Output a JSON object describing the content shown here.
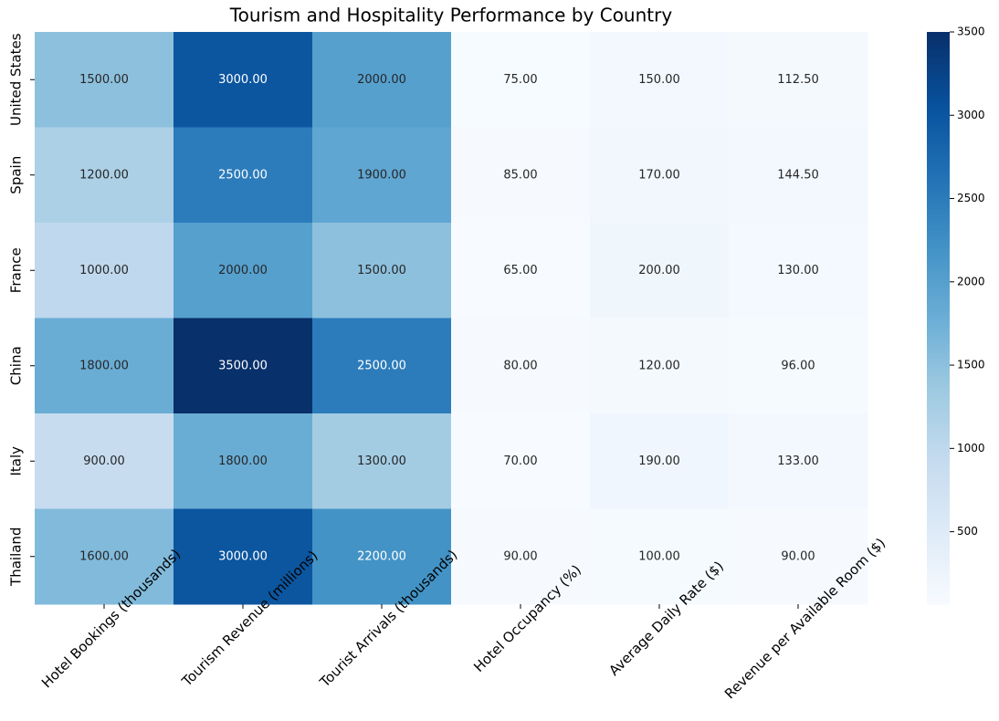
{
  "chart_data": {
    "type": "heatmap",
    "title": "Tourism and Hospitality Performance by Country",
    "x": [
      "Hotel Bookings (thousands)",
      "Tourism Revenue (millions)",
      "Tourist Arrivals (thousands)",
      "Hotel Occupancy (%)",
      "Average Daily Rate ($)",
      "Revenue per Available Room ($)"
    ],
    "y": [
      "United States",
      "Spain",
      "France",
      "China",
      "Italy",
      "Thailand"
    ],
    "values": [
      [
        1500,
        3000,
        2000,
        75,
        150,
        112.5
      ],
      [
        1200,
        2500,
        1900,
        85,
        170,
        144.5
      ],
      [
        1000,
        2000,
        1500,
        65,
        200,
        130
      ],
      [
        1800,
        3500,
        2500,
        80,
        120,
        96
      ],
      [
        900,
        1800,
        1300,
        70,
        190,
        133
      ],
      [
        1600,
        3000,
        2200,
        90,
        100,
        90
      ]
    ],
    "value_labels": [
      [
        "1500.00",
        "3000.00",
        "2000.00",
        "75.00",
        "150.00",
        "112.50"
      ],
      [
        "1200.00",
        "2500.00",
        "1900.00",
        "85.00",
        "170.00",
        "144.50"
      ],
      [
        "1000.00",
        "2000.00",
        "1500.00",
        "65.00",
        "200.00",
        "130.00"
      ],
      [
        "1800.00",
        "3500.00",
        "2500.00",
        "80.00",
        "120.00",
        "96.00"
      ],
      [
        "900.00",
        "1800.00",
        "1300.00",
        "70.00",
        "190.00",
        "133.00"
      ],
      [
        "1600.00",
        "3000.00",
        "2200.00",
        "90.00",
        "100.00",
        "90.00"
      ]
    ],
    "colormap": "Blues",
    "zlim": [
      65,
      3500
    ],
    "zticks": [
      500,
      1000,
      1500,
      2000,
      2500,
      3000,
      3500
    ]
  }
}
